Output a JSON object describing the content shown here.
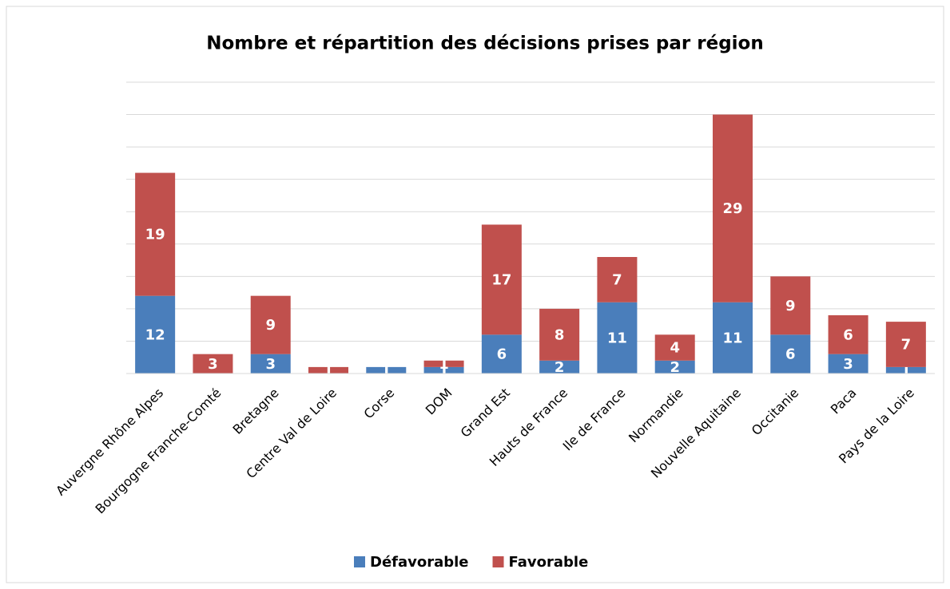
{
  "chart_data": {
    "type": "stacked_bar",
    "title": "Nombre et répartition des décisions prises par région",
    "categories": [
      "Auvergne Rhône Alpes",
      "Bourgogne Franche-Comté",
      "Bretagne",
      "Centre Val de Loire",
      "Corse",
      "DOM",
      "Grand Est",
      "Hauts de France",
      "Ile de France",
      "Normandie",
      "Nouvelle Aquitaine",
      "Occitanie",
      "Paca",
      "Pays de la Loire"
    ],
    "series": [
      {
        "name": "Défavorable",
        "color": "#4a7ebb",
        "values": [
          12,
          0,
          3,
          0,
          1,
          1,
          6,
          2,
          11,
          2,
          11,
          6,
          3,
          1
        ]
      },
      {
        "name": "Favorable",
        "color": "#c0504d",
        "values": [
          19,
          3,
          9,
          1,
          0,
          1,
          17,
          8,
          7,
          4,
          29,
          9,
          6,
          7
        ]
      }
    ],
    "ylim": [
      0,
      45
    ],
    "yticks": [
      0,
      5,
      10,
      15,
      20,
      25,
      30,
      35,
      40,
      45
    ],
    "grid": true,
    "legend": "bottom"
  }
}
